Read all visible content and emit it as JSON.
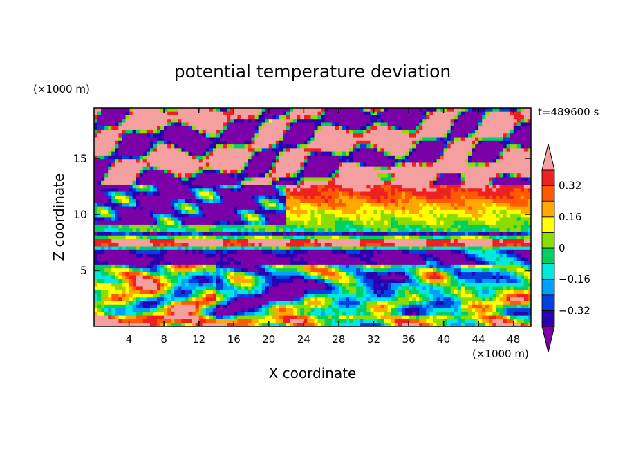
{
  "chart_data": {
    "type": "heatmap",
    "title": "potential temperature deviation",
    "xlabel": "X coordinate",
    "ylabel": "Z coordinate",
    "x_unit": "(×1000 m)",
    "y_unit": "(×1000 m)",
    "time_label": "t=489600 s",
    "xlim": [
      0,
      50
    ],
    "ylim": [
      0,
      19.5
    ],
    "x_ticks": [
      4,
      8,
      12,
      16,
      20,
      24,
      28,
      32,
      36,
      40,
      44,
      48
    ],
    "y_ticks": [
      5,
      10,
      15
    ],
    "colorbar": {
      "levels": [
        -0.4,
        -0.32,
        -0.24,
        -0.16,
        -0.08,
        0,
        0.08,
        0.16,
        0.24,
        0.32,
        0.4
      ],
      "colors": [
        "#7b00a8",
        "#2b00b0",
        "#0040e0",
        "#00a0ff",
        "#00e8e0",
        "#00d060",
        "#8cdc00",
        "#ffff00",
        "#ffa800",
        "#ff5a00",
        "#ee2020",
        "#f4a0a0"
      ],
      "labels": [
        "-0.32",
        "-0.16",
        "0",
        "0.16",
        "0.32"
      ],
      "extend": "both"
    },
    "field_description_bands": [
      {
        "z_range": [
          0,
          5.5
        ],
        "pattern": "turbulent eddies, mixed blue/green/yellow/pink"
      },
      {
        "z_range": [
          5.5,
          8.5
        ],
        "pattern": "purple layer with red band near z=7.5"
      },
      {
        "z_range": [
          8.5,
          12.5
        ],
        "pattern": "stratified green/yellow/orange/red bands"
      },
      {
        "z_range": [
          12.5,
          19.5
        ],
        "pattern": "patchy purple and pink with red band near z=14"
      }
    ]
  }
}
